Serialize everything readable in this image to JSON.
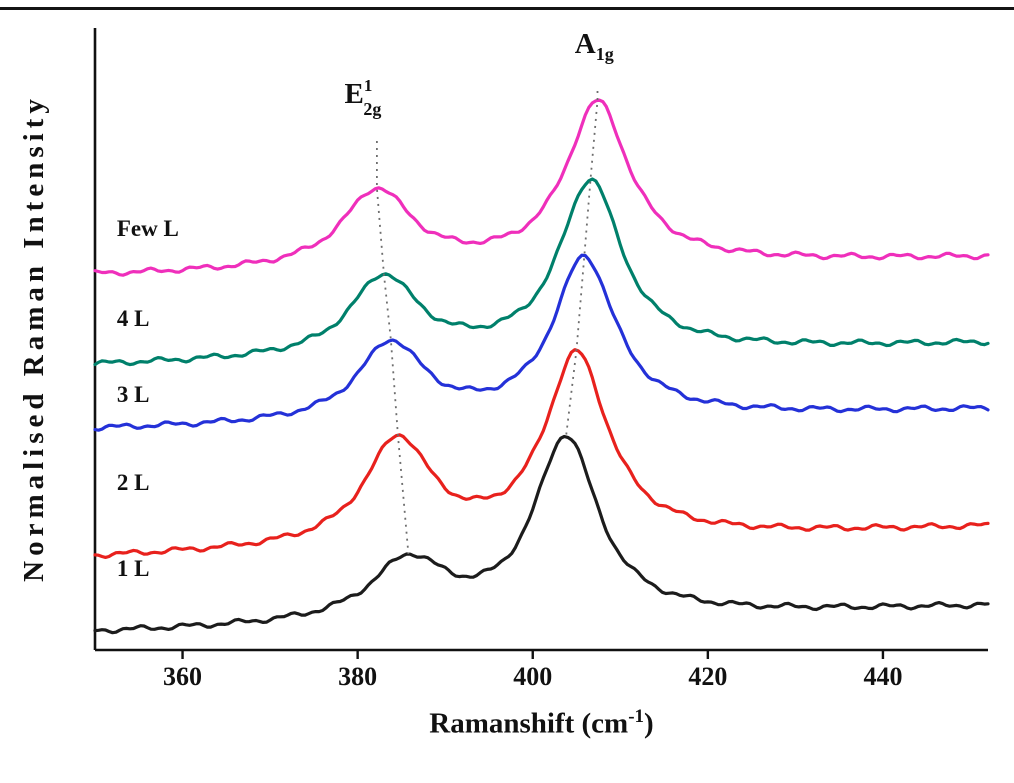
{
  "figure": {
    "background": "#ffffff",
    "rule_color": "#141414"
  },
  "chart_data": {
    "type": "line",
    "title": "",
    "xlabel": {
      "base": "Ramanshift (cm",
      "sup": "-1",
      "end": ")"
    },
    "ylabel": "Normalised Raman Intensity",
    "xlim": [
      350,
      452
    ],
    "ylim": [
      -0.12,
      6.1
    ],
    "x_ticks": [
      360,
      380,
      400,
      420,
      440
    ],
    "grid": false,
    "legend_position": "none",
    "guide_color": "#6e6e6e",
    "label_x": 352.5,
    "peak_labels": [
      {
        "base": "E",
        "sup": "1",
        "sub": "2g",
        "x": 378.5,
        "y": 5.35
      },
      {
        "base": "A",
        "sup": "",
        "sub": "1g",
        "x": 404.8,
        "y": 5.85
      }
    ],
    "series": [
      {
        "name": "1 L",
        "color": "#1c1c1c",
        "offset": 0.05,
        "slope": 0.0026,
        "phase": 0.7,
        "label_y": 0.62,
        "peaks": [
          {
            "center": 385.8,
            "amp": 0.6,
            "width": 5.2
          },
          {
            "center": 403.8,
            "amp": 1.8,
            "width": 4.4
          }
        ]
      },
      {
        "name": "2 L",
        "color": "#e8211d",
        "offset": 0.8,
        "slope": 0.003,
        "phase": 1.9,
        "label_y": 1.48,
        "peaks": [
          {
            "center": 384.6,
            "amp": 1.05,
            "width": 4.6
          },
          {
            "center": 405.0,
            "amp": 1.85,
            "width": 4.4
          }
        ]
      },
      {
        "name": "3 L",
        "color": "#2431d8",
        "offset": 2.08,
        "slope": 0.002,
        "phase": 3.1,
        "label_y": 2.36,
        "peaks": [
          {
            "center": 383.8,
            "amp": 0.78,
            "width": 4.6
          },
          {
            "center": 405.9,
            "amp": 1.6,
            "width": 4.3
          }
        ]
      },
      {
        "name": "4 L",
        "color": "#00806b",
        "offset": 2.72,
        "slope": 0.0022,
        "phase": 4.3,
        "label_y": 3.12,
        "peaks": [
          {
            "center": 383.0,
            "amp": 0.8,
            "width": 4.7
          },
          {
            "center": 406.6,
            "amp": 1.72,
            "width": 4.3
          }
        ]
      },
      {
        "name": "Few L",
        "color": "#ef2fbb",
        "offset": 3.62,
        "slope": 0.0018,
        "phase": 5.6,
        "label_y": 4.02,
        "peaks": [
          {
            "center": 382.2,
            "amp": 0.78,
            "width": 4.8
          },
          {
            "center": 407.4,
            "amp": 1.62,
            "width": 4.4
          }
        ]
      }
    ]
  }
}
